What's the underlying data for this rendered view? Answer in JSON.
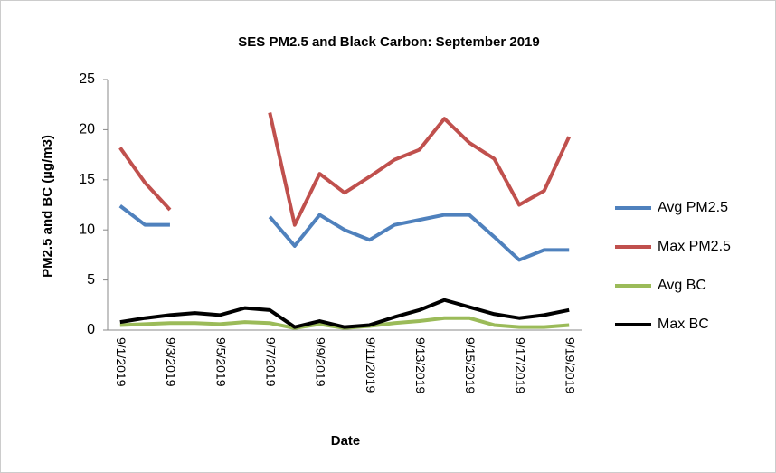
{
  "chart_data": {
    "type": "line",
    "title": "SES PM2.5 and Black Carbon: September 2019",
    "x_label": "Date",
    "y_label": "PM2.5 and BC (µg/m3)",
    "categories": [
      "9/1/2019",
      null,
      "9/3/2019",
      null,
      "9/5/2019",
      null,
      "9/7/2019",
      null,
      "9/9/2019",
      null,
      "9/11/2019",
      null,
      "9/13/2019",
      null,
      "9/15/2019",
      null,
      "9/17/2019",
      null,
      "9/19/2019"
    ],
    "ylim": [
      0,
      25
    ],
    "yticks": [
      0,
      5,
      10,
      15,
      20,
      25
    ],
    "grid": false,
    "legend": "right",
    "series": [
      {
        "name": "Avg PM2.5",
        "color": "#4f81bd",
        "values": [
          12.4,
          10.5,
          10.5,
          null,
          null,
          null,
          11.3,
          8.4,
          11.5,
          10,
          9,
          10.5,
          11,
          11.5,
          11.5,
          9.3,
          7,
          8,
          8
        ]
      },
      {
        "name": "Max PM2.5",
        "color": "#c0504d",
        "values": [
          18.2,
          14.7,
          12,
          null,
          null,
          null,
          21.7,
          10.5,
          15.6,
          13.7,
          15.3,
          17,
          18,
          21.1,
          18.7,
          17.1,
          12.5,
          13.9,
          19.3
        ]
      },
      {
        "name": "Avg BC",
        "color": "#9bbb59",
        "values": [
          0.5,
          0.6,
          0.7,
          0.7,
          0.6,
          0.8,
          0.7,
          0.2,
          0.6,
          0.2,
          0.4,
          0.7,
          0.9,
          1.2,
          1.2,
          0.5,
          0.3,
          0.3,
          0.5
        ]
      },
      {
        "name": "Max BC",
        "color": "#000000",
        "values": [
          0.8,
          1.2,
          1.5,
          1.7,
          1.5,
          2.2,
          2,
          0.3,
          0.9,
          0.3,
          0.5,
          1.3,
          2,
          3,
          2.3,
          1.6,
          1.2,
          1.5,
          2
        ]
      }
    ]
  }
}
